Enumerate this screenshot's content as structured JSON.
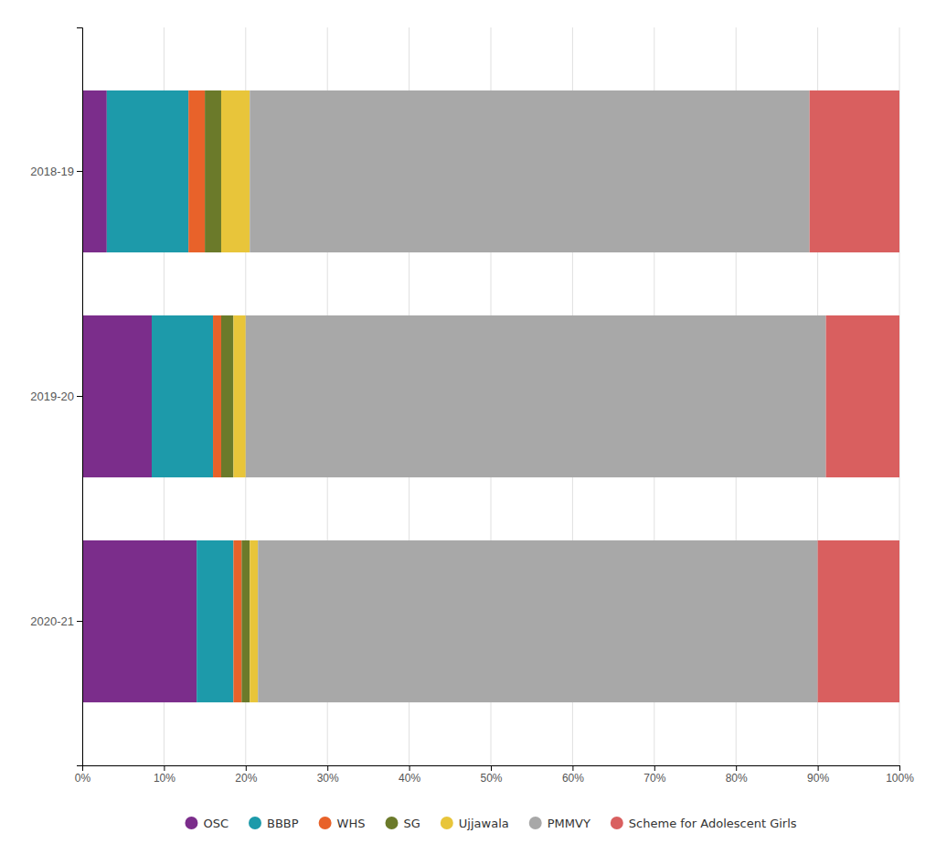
{
  "chart_data": {
    "type": "bar",
    "orientation": "horizontal",
    "stacked": true,
    "categories": [
      "2018-19",
      "2019-20",
      "2020-21"
    ],
    "series": [
      {
        "name": "OSC",
        "color": "#7b2d8b",
        "values": [
          3.0,
          8.5,
          14.0
        ]
      },
      {
        "name": "BBBP",
        "color": "#1d9aaa",
        "values": [
          10.0,
          7.5,
          4.5
        ]
      },
      {
        "name": "WHS",
        "color": "#e8622a",
        "values": [
          2.0,
          1.0,
          1.0
        ]
      },
      {
        "name": "SG",
        "color": "#6b7a2a",
        "values": [
          2.0,
          1.5,
          1.0
        ]
      },
      {
        "name": "Ujjawala",
        "color": "#e8c53a",
        "values": [
          3.5,
          1.5,
          1.0
        ]
      },
      {
        "name": "PMMVY",
        "color": "#a8a8a8",
        "values": [
          68.5,
          71.0,
          68.5
        ]
      },
      {
        "name": "Scheme for Adolescent Girls",
        "color": "#d95f5f",
        "values": [
          11.0,
          9.0,
          10.0
        ]
      }
    ],
    "xlim": [
      0,
      100
    ],
    "xticks": [
      {
        "value": 0,
        "label": "0%"
      },
      {
        "value": 10,
        "label": "10%"
      },
      {
        "value": 20,
        "label": "20%"
      },
      {
        "value": 30,
        "label": "30%"
      },
      {
        "value": 40,
        "label": "40%"
      },
      {
        "value": 50,
        "label": "50%"
      },
      {
        "value": 60,
        "label": "60%"
      },
      {
        "value": 70,
        "label": "70%"
      },
      {
        "value": 80,
        "label": "80%"
      },
      {
        "value": 90,
        "label": "90%"
      },
      {
        "value": 100,
        "label": "100%"
      }
    ],
    "grid": true,
    "legend": "bottom"
  }
}
